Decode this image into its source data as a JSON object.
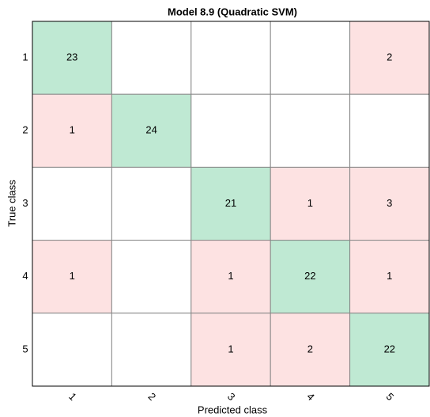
{
  "chart_data": {
    "type": "confusion_matrix",
    "title": "Model 8.9 (Quadratic SVM)",
    "x_label": "Predicted class",
    "y_label": "True class",
    "categories": [
      "1",
      "2",
      "3",
      "4",
      "5"
    ],
    "matrix": [
      [
        23,
        null,
        null,
        null,
        2
      ],
      [
        1,
        24,
        null,
        null,
        null
      ],
      [
        null,
        null,
        21,
        1,
        3
      ],
      [
        1,
        null,
        1,
        22,
        1
      ],
      [
        null,
        null,
        1,
        2,
        22
      ]
    ],
    "diagonal_color": "#bfe9d3",
    "off_diagonal_color": "#fde2e2"
  }
}
